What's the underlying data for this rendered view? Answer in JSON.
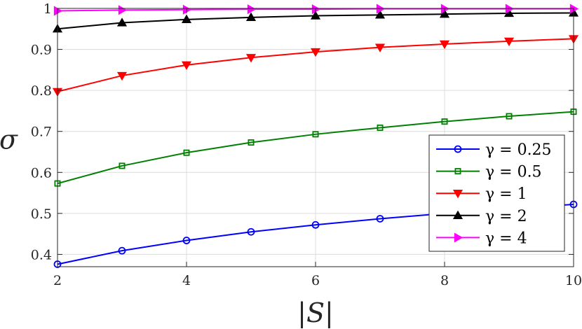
{
  "chart_data": {
    "type": "line",
    "title": "",
    "xlabel": "|S|",
    "ylabel": "σ",
    "x": [
      2,
      3,
      4,
      5,
      6,
      7,
      8,
      9,
      10
    ],
    "xlim": [
      2,
      10
    ],
    "ylim": [
      0.37,
      1.0
    ],
    "xticks": [
      2,
      4,
      6,
      8,
      10
    ],
    "xtick_labels": [
      "2",
      "4",
      "6",
      "8",
      "10"
    ],
    "yticks": [
      0.4,
      0.5,
      0.6,
      0.7,
      0.8,
      0.9,
      1.0
    ],
    "ytick_labels": [
      "0.4",
      "0.5",
      "0.6",
      "0.7",
      "0.8",
      "0.9",
      "1"
    ],
    "grid": true,
    "legend_position": "bottom-right",
    "series": [
      {
        "name": "γ = 0.25",
        "color": "#0000ff",
        "marker": "circle",
        "values": [
          0.376,
          0.409,
          0.434,
          0.455,
          0.472,
          0.487,
          0.5,
          0.512,
          0.522
        ]
      },
      {
        "name": "γ = 0.5",
        "color": "#008000",
        "marker": "square",
        "values": [
          0.573,
          0.616,
          0.648,
          0.673,
          0.693,
          0.709,
          0.724,
          0.737,
          0.748
        ]
      },
      {
        "name": "γ = 1",
        "color": "#ff0000",
        "marker": "triangle-down",
        "values": [
          0.797,
          0.836,
          0.862,
          0.88,
          0.894,
          0.905,
          0.913,
          0.92,
          0.926
        ]
      },
      {
        "name": "γ = 2",
        "color": "#000000",
        "marker": "triangle-up",
        "values": [
          0.95,
          0.965,
          0.973,
          0.978,
          0.982,
          0.984,
          0.986,
          0.988,
          0.989
        ]
      },
      {
        "name": "γ = 4",
        "color": "#ff00ff",
        "marker": "triangle-right",
        "values": [
          0.994,
          0.996,
          0.997,
          0.998,
          0.998,
          0.999,
          0.999,
          0.999,
          0.999
        ]
      }
    ]
  }
}
